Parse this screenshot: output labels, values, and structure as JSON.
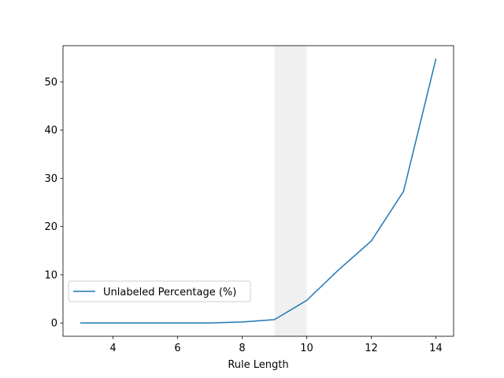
{
  "chart_data": {
    "type": "line",
    "title": "",
    "xlabel": "Rule Length",
    "ylabel": "",
    "xlim": [
      2.45,
      14.55
    ],
    "ylim": [
      -2.75,
      57.5
    ],
    "x_ticks": [
      4,
      6,
      8,
      10,
      12,
      14
    ],
    "y_ticks": [
      0,
      10,
      20,
      30,
      40,
      50
    ],
    "grid": false,
    "legend_position": "center-left",
    "highlight_span": {
      "x_start": 9,
      "x_end": 10,
      "color": "#f0f0f0"
    },
    "series": [
      {
        "name": "Unlabeled Percentage (%)",
        "color": "#1f77b4",
        "x": [
          3,
          4,
          5,
          6,
          7,
          8,
          9,
          10,
          11,
          12,
          13,
          14
        ],
        "y": [
          0,
          0,
          0,
          0,
          0,
          0.2,
          0.7,
          4.7,
          11.1,
          17.0,
          27.3,
          54.7
        ]
      }
    ]
  }
}
